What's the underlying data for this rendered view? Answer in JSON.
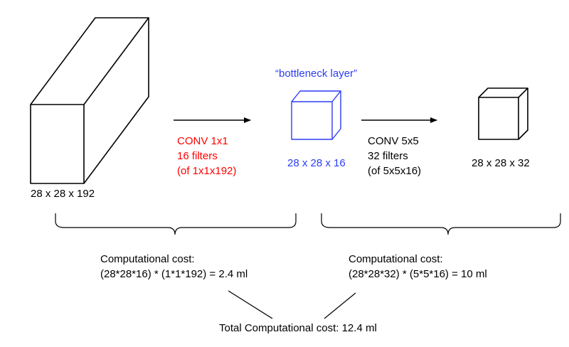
{
  "input_volume": {
    "dims": "28 x 28 x 192"
  },
  "bottleneck": {
    "caption": "“bottleneck layer”",
    "dims": "28 x 28 x 16"
  },
  "output_volume": {
    "dims": "28 x 28 x 32"
  },
  "conv1": {
    "line1": "CONV 1x1",
    "line2": "16 filters",
    "line3": "(of 1x1x192)"
  },
  "conv2": {
    "line1": "CONV 5x5",
    "line2": "32 filters",
    "line3": "(of 5x5x16)"
  },
  "cost1": {
    "title": "Computational cost:",
    "formula": "(28*28*16) * (1*1*192) = 2.4 ml"
  },
  "cost2": {
    "title": "Computational cost:",
    "formula": "(28*28*32) * (5*5*16) = 10 ml"
  },
  "total": {
    "text": "Total Computational cost: 12.4 ml"
  },
  "colors": {
    "conv1_text": "#ff0000",
    "bottleneck": "#2b3cf5",
    "lines": "#000000"
  }
}
